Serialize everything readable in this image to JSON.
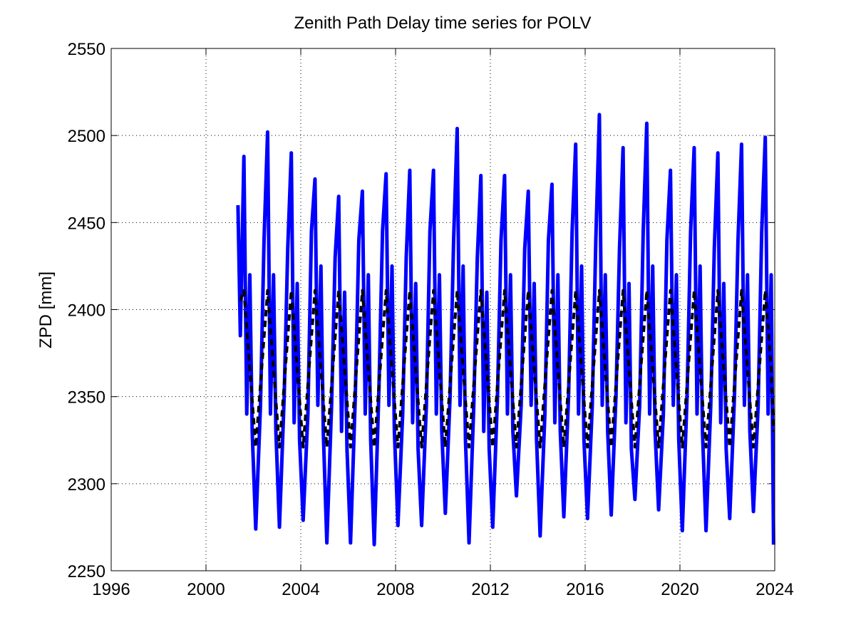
{
  "chart_data": {
    "type": "line",
    "title": "Zenith Path Delay time series for POLV",
    "y_label": "ZPD [mm]",
    "xlim": [
      1996,
      2024
    ],
    "xticks": [
      1996,
      2000,
      2004,
      2008,
      2012,
      2016,
      2020,
      2024
    ],
    "ylim": [
      2250,
      2550
    ],
    "yticks": [
      2250,
      2300,
      2350,
      2400,
      2450,
      2500,
      2550
    ],
    "grid": true,
    "series": [
      {
        "color": "#0000ff",
        "dash": false,
        "x": [
          2001.35,
          2001.45,
          2001.6,
          2001.72,
          2001.85,
          2001.95,
          2002.1,
          2002.3,
          2002.45,
          2002.6,
          2002.72,
          2002.85,
          2002.95,
          2003.1,
          2003.3,
          2003.45,
          2003.6,
          2003.72,
          2003.85,
          2003.95,
          2004.1,
          2004.3,
          2004.45,
          2004.6,
          2004.72,
          2004.85,
          2004.95,
          2005.1,
          2005.3,
          2005.45,
          2005.6,
          2005.72,
          2005.85,
          2005.95,
          2006.1,
          2006.3,
          2006.45,
          2006.6,
          2006.72,
          2006.85,
          2006.95,
          2007.1,
          2007.3,
          2007.45,
          2007.6,
          2007.72,
          2007.85,
          2007.95,
          2008.1,
          2008.3,
          2008.45,
          2008.6,
          2008.72,
          2008.85,
          2008.95,
          2009.1,
          2009.3,
          2009.45,
          2009.6,
          2009.72,
          2009.85,
          2009.95,
          2010.1,
          2010.3,
          2010.45,
          2010.6,
          2010.72,
          2010.85,
          2010.95,
          2011.1,
          2011.3,
          2011.45,
          2011.6,
          2011.72,
          2011.85,
          2011.95,
          2012.1,
          2012.3,
          2012.45,
          2012.6,
          2012.72,
          2012.85,
          2012.95,
          2013.1,
          2013.3,
          2013.45,
          2013.6,
          2013.72,
          2013.85,
          2013.95,
          2014.1,
          2014.3,
          2014.45,
          2014.6,
          2014.72,
          2014.85,
          2014.95,
          2015.1,
          2015.3,
          2015.45,
          2015.6,
          2015.72,
          2015.85,
          2015.95,
          2016.1,
          2016.3,
          2016.45,
          2016.6,
          2016.72,
          2016.85,
          2016.95,
          2017.1,
          2017.3,
          2017.45,
          2017.6,
          2017.72,
          2017.85,
          2017.95,
          2018.1,
          2018.3,
          2018.45,
          2018.6,
          2018.72,
          2018.85,
          2018.95,
          2019.1,
          2019.3,
          2019.45,
          2019.6,
          2019.72,
          2019.85,
          2019.95,
          2020.1,
          2020.3,
          2020.45,
          2020.6,
          2020.72,
          2020.85,
          2020.95,
          2021.1,
          2021.3,
          2021.45,
          2021.6,
          2021.72,
          2021.85,
          2021.95,
          2022.1,
          2022.3,
          2022.45,
          2022.6,
          2022.72,
          2022.85,
          2022.95,
          2023.1,
          2023.3,
          2023.45,
          2023.6,
          2023.72,
          2023.85,
          2023.95
        ],
        "values": [
          2460,
          2385,
          2488,
          2340,
          2420,
          2330,
          2274,
          2345,
          2440,
          2502,
          2340,
          2420,
          2330,
          2275,
          2350,
          2435,
          2490,
          2335,
          2415,
          2325,
          2279,
          2340,
          2445,
          2475,
          2345,
          2425,
          2330,
          2266,
          2345,
          2430,
          2465,
          2330,
          2410,
          2320,
          2266,
          2350,
          2440,
          2468,
          2340,
          2420,
          2325,
          2265,
          2355,
          2445,
          2478,
          2345,
          2425,
          2330,
          2276,
          2340,
          2430,
          2480,
          2335,
          2415,
          2320,
          2276,
          2345,
          2445,
          2480,
          2340,
          2420,
          2330,
          2283,
          2350,
          2440,
          2504,
          2345,
          2425,
          2325,
          2266,
          2345,
          2430,
          2477,
          2330,
          2410,
          2320,
          2275,
          2350,
          2440,
          2477,
          2340,
          2420,
          2330,
          2293,
          2345,
          2435,
          2468,
          2345,
          2415,
          2325,
          2270,
          2340,
          2440,
          2472,
          2335,
          2420,
          2330,
          2281,
          2350,
          2445,
          2495,
          2340,
          2425,
          2325,
          2280,
          2345,
          2440,
          2512,
          2345,
          2420,
          2330,
          2282,
          2350,
          2435,
          2493,
          2335,
          2415,
          2320,
          2291,
          2345,
          2445,
          2507,
          2340,
          2425,
          2330,
          2285,
          2340,
          2440,
          2480,
          2345,
          2420,
          2325,
          2273,
          2350,
          2445,
          2493,
          2340,
          2425,
          2330,
          2273,
          2345,
          2435,
          2490,
          2335,
          2415,
          2320,
          2280,
          2350,
          2440,
          2495,
          2345,
          2420,
          2330,
          2284,
          2345,
          2445,
          2499,
          2340,
          2420,
          2265
        ]
      },
      {
        "color": "#000000",
        "dash": true,
        "x": [
          2001.45,
          2001.6,
          2001.85,
          2002.1,
          2002.35,
          2002.6,
          2002.85,
          2003.1,
          2003.35,
          2003.6,
          2003.85,
          2004.1,
          2004.35,
          2004.6,
          2004.85,
          2005.1,
          2005.35,
          2005.6,
          2005.85,
          2006.1,
          2006.35,
          2006.6,
          2006.85,
          2007.1,
          2007.35,
          2007.6,
          2007.85,
          2008.1,
          2008.35,
          2008.6,
          2008.85,
          2009.1,
          2009.35,
          2009.6,
          2009.85,
          2010.1,
          2010.35,
          2010.6,
          2010.85,
          2011.1,
          2011.35,
          2011.6,
          2011.85,
          2012.1,
          2012.35,
          2012.6,
          2012.85,
          2013.1,
          2013.35,
          2013.6,
          2013.85,
          2014.1,
          2014.35,
          2014.6,
          2014.85,
          2015.1,
          2015.35,
          2015.6,
          2015.85,
          2016.1,
          2016.35,
          2016.6,
          2016.85,
          2017.1,
          2017.35,
          2017.6,
          2017.85,
          2018.1,
          2018.35,
          2018.6,
          2018.85,
          2019.1,
          2019.35,
          2019.6,
          2019.85,
          2020.1,
          2020.35,
          2020.6,
          2020.85,
          2021.1,
          2021.35,
          2021.6,
          2021.85,
          2022.1,
          2022.35,
          2022.6,
          2022.85,
          2023.1,
          2023.35,
          2023.6,
          2023.85,
          2023.95
        ],
        "values": [
          2405,
          2411,
          2366,
          2321,
          2366,
          2411,
          2366,
          2321,
          2366,
          2411,
          2366,
          2321,
          2366,
          2411,
          2366,
          2321,
          2366,
          2411,
          2366,
          2321,
          2366,
          2411,
          2366,
          2321,
          2366,
          2411,
          2366,
          2321,
          2366,
          2411,
          2366,
          2321,
          2366,
          2411,
          2366,
          2321,
          2366,
          2411,
          2366,
          2321,
          2366,
          2411,
          2366,
          2321,
          2366,
          2411,
          2366,
          2321,
          2366,
          2411,
          2366,
          2321,
          2366,
          2411,
          2366,
          2321,
          2366,
          2411,
          2366,
          2321,
          2366,
          2411,
          2366,
          2321,
          2366,
          2411,
          2366,
          2321,
          2366,
          2411,
          2366,
          2321,
          2366,
          2411,
          2366,
          2321,
          2366,
          2411,
          2366,
          2321,
          2366,
          2411,
          2366,
          2321,
          2366,
          2411,
          2366,
          2321,
          2366,
          2411,
          2366,
          2330
        ]
      }
    ]
  }
}
